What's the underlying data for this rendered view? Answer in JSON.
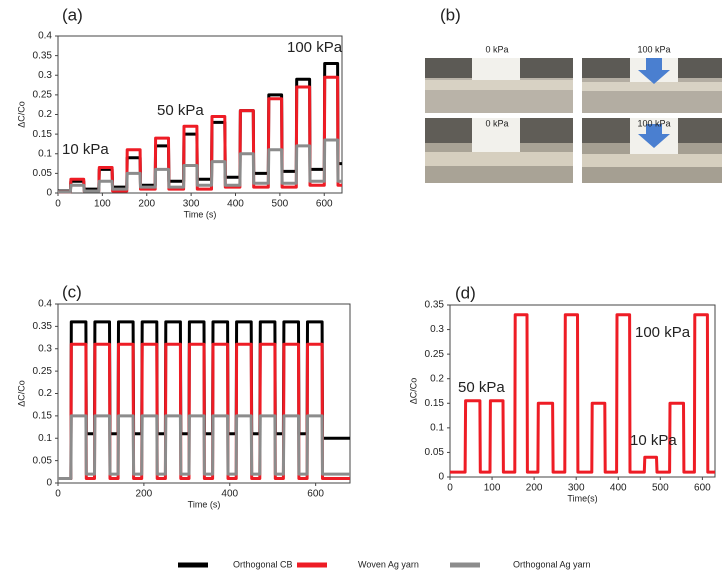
{
  "chart_data": [
    {
      "type": "line",
      "title": "(a)",
      "x_label": "Time (s)",
      "y_label": "ΔC/Co",
      "x": [
        0,
        28,
        29,
        58,
        59,
        92,
        93,
        122,
        123,
        155,
        156,
        185,
        186,
        219,
        220,
        249,
        250,
        283,
        284,
        313,
        314,
        346,
        347,
        376,
        377,
        410,
        411,
        440,
        441,
        474,
        475,
        504,
        505,
        537,
        538,
        567,
        568,
        600,
        601,
        630,
        631,
        640
      ],
      "series": [
        {
          "name": "Orthogonal CB",
          "color": "#000000",
          "values": [
            0.005,
            0.005,
            0.03,
            0.03,
            0.01,
            0.01,
            0.06,
            0.06,
            0.015,
            0.015,
            0.09,
            0.09,
            0.02,
            0.02,
            0.12,
            0.12,
            0.03,
            0.03,
            0.15,
            0.15,
            0.035,
            0.035,
            0.18,
            0.18,
            0.04,
            0.04,
            0.21,
            0.21,
            0.05,
            0.05,
            0.25,
            0.25,
            0.055,
            0.055,
            0.29,
            0.29,
            0.06,
            0.06,
            0.33,
            0.33,
            0.075,
            0.075
          ]
        },
        {
          "name": "Woven Ag yarn",
          "color": "#ee1c25",
          "values": [
            0.003,
            0.003,
            0.035,
            0.035,
            0.005,
            0.005,
            0.065,
            0.065,
            0.005,
            0.005,
            0.11,
            0.11,
            0.01,
            0.01,
            0.14,
            0.14,
            0.01,
            0.01,
            0.17,
            0.17,
            0.01,
            0.01,
            0.195,
            0.195,
            0.015,
            0.015,
            0.21,
            0.21,
            0.015,
            0.015,
            0.24,
            0.24,
            0.015,
            0.015,
            0.27,
            0.27,
            0.02,
            0.02,
            0.295,
            0.295,
            0.02,
            0.02
          ]
        },
        {
          "name": "Orthogonal Ag yarn",
          "color": "#8c8c8c",
          "values": [
            0.003,
            0.003,
            0.02,
            0.02,
            0.005,
            0.005,
            0.03,
            0.03,
            0.01,
            0.01,
            0.05,
            0.05,
            0.015,
            0.015,
            0.06,
            0.06,
            0.015,
            0.015,
            0.07,
            0.07,
            0.02,
            0.02,
            0.08,
            0.08,
            0.02,
            0.02,
            0.1,
            0.1,
            0.025,
            0.025,
            0.11,
            0.11,
            0.025,
            0.025,
            0.12,
            0.12,
            0.03,
            0.03,
            0.135,
            0.135,
            0.03,
            0.03
          ]
        }
      ],
      "xlim": [
        0,
        640
      ],
      "xticks": [
        0,
        100,
        200,
        300,
        400,
        500,
        600
      ],
      "ylim": [
        0,
        0.4
      ],
      "yticks": [
        0,
        0.05,
        0.1,
        0.15,
        0.2,
        0.25,
        0.3,
        0.35,
        0.4
      ],
      "annotations": [
        "10 kPa",
        "50 kPa",
        "100 kPa"
      ]
    },
    {
      "type": "line",
      "title": "(c)",
      "x_label": "Time (s)",
      "y_label": "ΔC/Co",
      "x": [
        0,
        30,
        31,
        65,
        66,
        85,
        86,
        120,
        121,
        140,
        141,
        175,
        176,
        195,
        196,
        230,
        231,
        250,
        251,
        285,
        286,
        305,
        306,
        340,
        341,
        360,
        361,
        395,
        396,
        415,
        416,
        450,
        451,
        470,
        471,
        505,
        506,
        525,
        526,
        560,
        561,
        580,
        581,
        615,
        616,
        680
      ],
      "series": [
        {
          "name": "Orthogonal CB",
          "color": "#000000",
          "values": [
            0.01,
            0.01,
            0.36,
            0.36,
            0.11,
            0.11,
            0.36,
            0.36,
            0.11,
            0.11,
            0.36,
            0.36,
            0.11,
            0.11,
            0.36,
            0.36,
            0.11,
            0.11,
            0.36,
            0.36,
            0.11,
            0.11,
            0.36,
            0.36,
            0.11,
            0.11,
            0.36,
            0.36,
            0.11,
            0.11,
            0.36,
            0.36,
            0.11,
            0.11,
            0.36,
            0.36,
            0.11,
            0.11,
            0.36,
            0.36,
            0.11,
            0.11,
            0.36,
            0.36,
            0.1,
            0.1
          ]
        },
        {
          "name": "Woven Ag yarn",
          "color": "#ee1c25",
          "values": [
            0.01,
            0.01,
            0.31,
            0.31,
            0.01,
            0.01,
            0.31,
            0.31,
            0.01,
            0.01,
            0.31,
            0.31,
            0.01,
            0.01,
            0.31,
            0.31,
            0.01,
            0.01,
            0.31,
            0.31,
            0.01,
            0.01,
            0.31,
            0.31,
            0.01,
            0.01,
            0.31,
            0.31,
            0.01,
            0.01,
            0.31,
            0.31,
            0.01,
            0.01,
            0.31,
            0.31,
            0.01,
            0.01,
            0.31,
            0.31,
            0.01,
            0.01,
            0.31,
            0.31,
            0.01,
            0.01
          ]
        },
        {
          "name": "Orthogonal Ag yarn",
          "color": "#8c8c8c",
          "values": [
            0.01,
            0.01,
            0.15,
            0.15,
            0.02,
            0.02,
            0.15,
            0.15,
            0.02,
            0.02,
            0.15,
            0.15,
            0.02,
            0.02,
            0.15,
            0.15,
            0.02,
            0.02,
            0.15,
            0.15,
            0.02,
            0.02,
            0.15,
            0.15,
            0.02,
            0.02,
            0.15,
            0.15,
            0.02,
            0.02,
            0.15,
            0.15,
            0.02,
            0.02,
            0.15,
            0.15,
            0.02,
            0.02,
            0.15,
            0.15,
            0.02,
            0.02,
            0.15,
            0.15,
            0.02,
            0.02
          ]
        }
      ],
      "xlim": [
        0,
        680
      ],
      "xticks": [
        0,
        200,
        400,
        600
      ],
      "ylim": [
        0,
        0.4
      ],
      "yticks": [
        0,
        0.05,
        0.1,
        0.15,
        0.2,
        0.25,
        0.3,
        0.35,
        0.4
      ],
      "annotations": []
    },
    {
      "type": "line",
      "title": "(d)",
      "x_label": "Time(s)",
      "y_label": "ΔC/Co",
      "x": [
        0,
        36,
        37,
        71,
        72,
        95,
        96,
        126,
        127,
        154,
        155,
        183,
        184,
        209,
        210,
        244,
        245,
        273,
        274,
        303,
        304,
        337,
        338,
        368,
        369,
        396,
        397,
        427,
        428,
        462,
        463,
        491,
        492,
        522,
        523,
        555,
        556,
        581,
        582,
        612,
        613,
        630
      ],
      "series": [
        {
          "name": "Woven Ag yarn",
          "color": "#ee1c25",
          "values": [
            0.01,
            0.01,
            0.155,
            0.155,
            0.01,
            0.01,
            0.155,
            0.155,
            0.01,
            0.01,
            0.33,
            0.33,
            0.01,
            0.01,
            0.15,
            0.15,
            0.01,
            0.01,
            0.33,
            0.33,
            0.01,
            0.01,
            0.15,
            0.15,
            0.01,
            0.01,
            0.33,
            0.33,
            0.01,
            0.01,
            0.04,
            0.04,
            0.01,
            0.01,
            0.15,
            0.15,
            0.01,
            0.01,
            0.33,
            0.33,
            0.01,
            0.01
          ]
        }
      ],
      "xlim": [
        0,
        630
      ],
      "xticks": [
        0,
        100,
        200,
        300,
        400,
        500,
        600
      ],
      "ylim": [
        0,
        0.35
      ],
      "yticks": [
        0,
        0.05,
        0.1,
        0.15,
        0.2,
        0.25,
        0.3,
        0.35
      ],
      "annotations": [
        "50 kPa",
        "100 kPa",
        "10 kPa"
      ]
    }
  ],
  "photos": {
    "title": "(b)",
    "labels": [
      "0 kPa",
      "100 kPa",
      "0 kPa",
      "100 kPa"
    ]
  }
}
